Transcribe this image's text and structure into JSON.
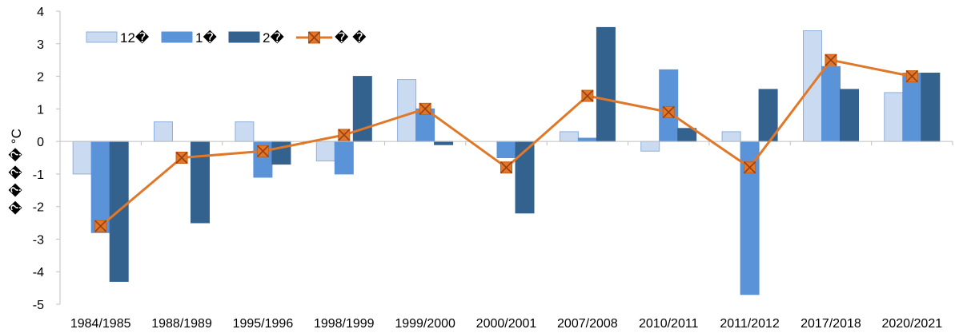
{
  "chart_data": {
    "type": "bar",
    "title": "",
    "xlabel": "",
    "ylabel": "� � � � °C",
    "ylim": [
      -5,
      4
    ],
    "yticks": [
      -5,
      -4,
      -3,
      -2,
      -1,
      0,
      1,
      2,
      3,
      4
    ],
    "ytick_labels": [
      "-5",
      "-4",
      "-3",
      "-2",
      "-1",
      "0",
      "1",
      "2",
      "3",
      "4"
    ],
    "grid": false,
    "legend_position": "top-left",
    "categories": [
      "1984/1985",
      "1988/1989",
      "1995/1996",
      "1998/1999",
      "1999/2000",
      "2000/2001",
      "2007/2008",
      "2010/2011",
      "2011/2012",
      "2017/2018",
      "2020/2021"
    ],
    "series": [
      {
        "name": "12�",
        "type": "bar",
        "color": "#c9daf1",
        "stroke": "#8eb0dc",
        "values": [
          -1.0,
          0.6,
          0.6,
          -0.6,
          1.9,
          0.0,
          0.3,
          -0.3,
          0.3,
          3.4,
          1.5
        ]
      },
      {
        "name": "1�",
        "type": "bar",
        "color": "#5b93d9",
        "stroke": "#5b93d9",
        "values": [
          -2.8,
          0.0,
          -1.1,
          -1.0,
          1.0,
          -0.5,
          0.1,
          2.2,
          -4.7,
          2.3,
          2.1
        ]
      },
      {
        "name": "2�",
        "type": "bar",
        "color": "#33628f",
        "stroke": "#33628f",
        "values": [
          -4.3,
          -2.5,
          -0.7,
          2.0,
          -0.1,
          -2.2,
          3.5,
          0.4,
          1.6,
          1.6,
          2.1
        ]
      },
      {
        "name": "� �",
        "type": "line",
        "color": "#e0782a",
        "values": [
          -2.6,
          -0.5,
          -0.3,
          0.2,
          1.0,
          -0.8,
          1.4,
          0.9,
          -0.8,
          2.5,
          2.0
        ]
      }
    ]
  }
}
